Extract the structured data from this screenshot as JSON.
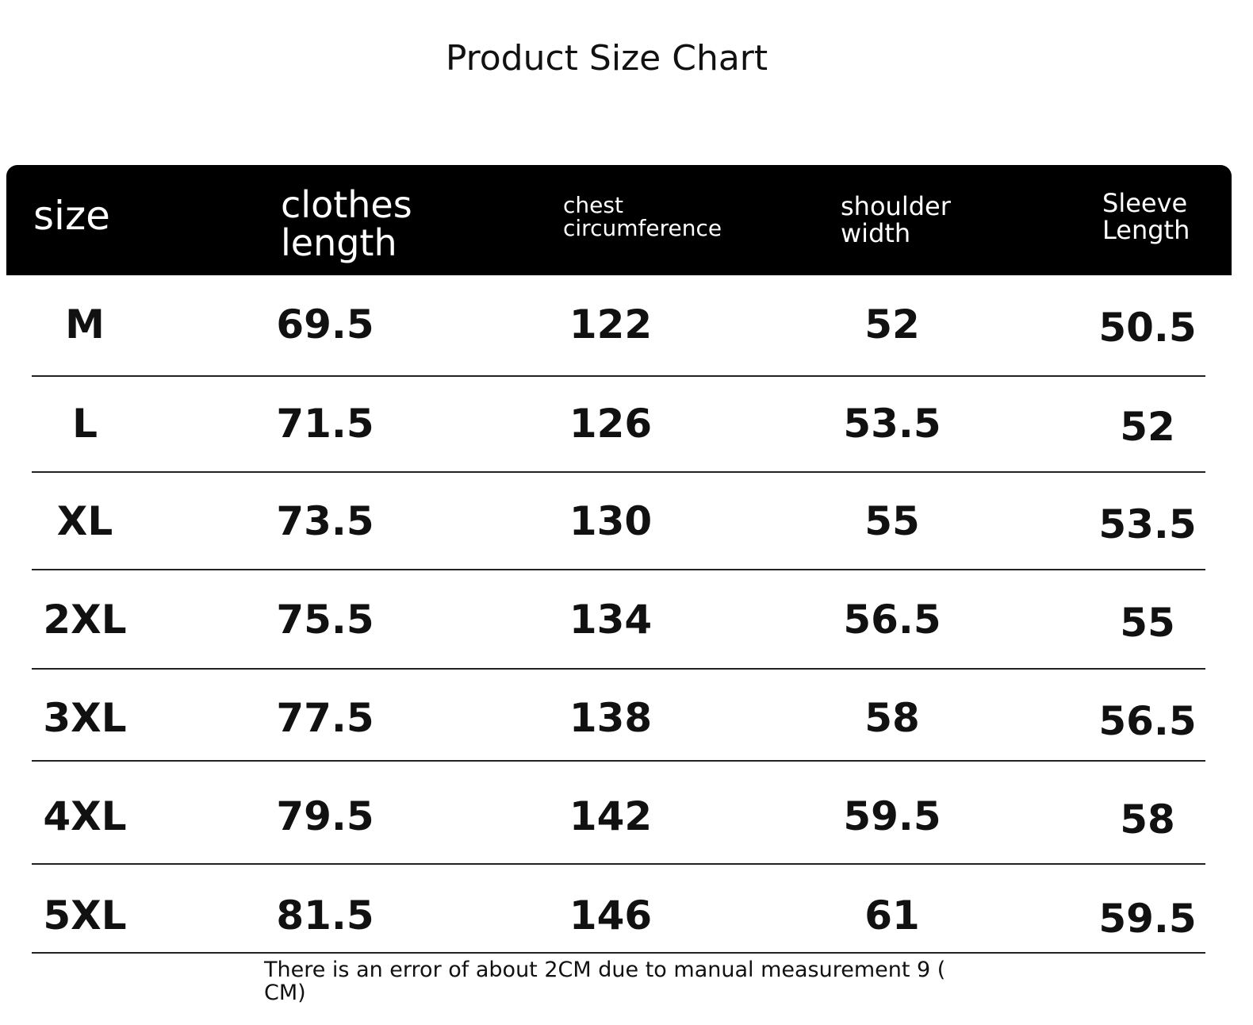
{
  "title": "Product Size Chart",
  "table": {
    "headers": [
      "size",
      "clothes length",
      "chest circumference",
      "shoulder width",
      "Sleeve Length"
    ],
    "rows": [
      [
        "M",
        69.5,
        122,
        52,
        50.5
      ],
      [
        "L",
        71.5,
        126,
        53.5,
        52
      ],
      [
        "XL",
        73.5,
        130,
        55,
        53.5
      ],
      [
        "2XL",
        75.5,
        134,
        56.5,
        55
      ],
      [
        "3XL",
        77.5,
        138,
        58,
        56.5
      ],
      [
        "4XL",
        79.5,
        142,
        59.5,
        58
      ],
      [
        "5XL",
        81.5,
        146,
        61,
        59.5
      ]
    ]
  },
  "note": "There is an error of about 2CM due to manual measurement 9 ( CM)"
}
